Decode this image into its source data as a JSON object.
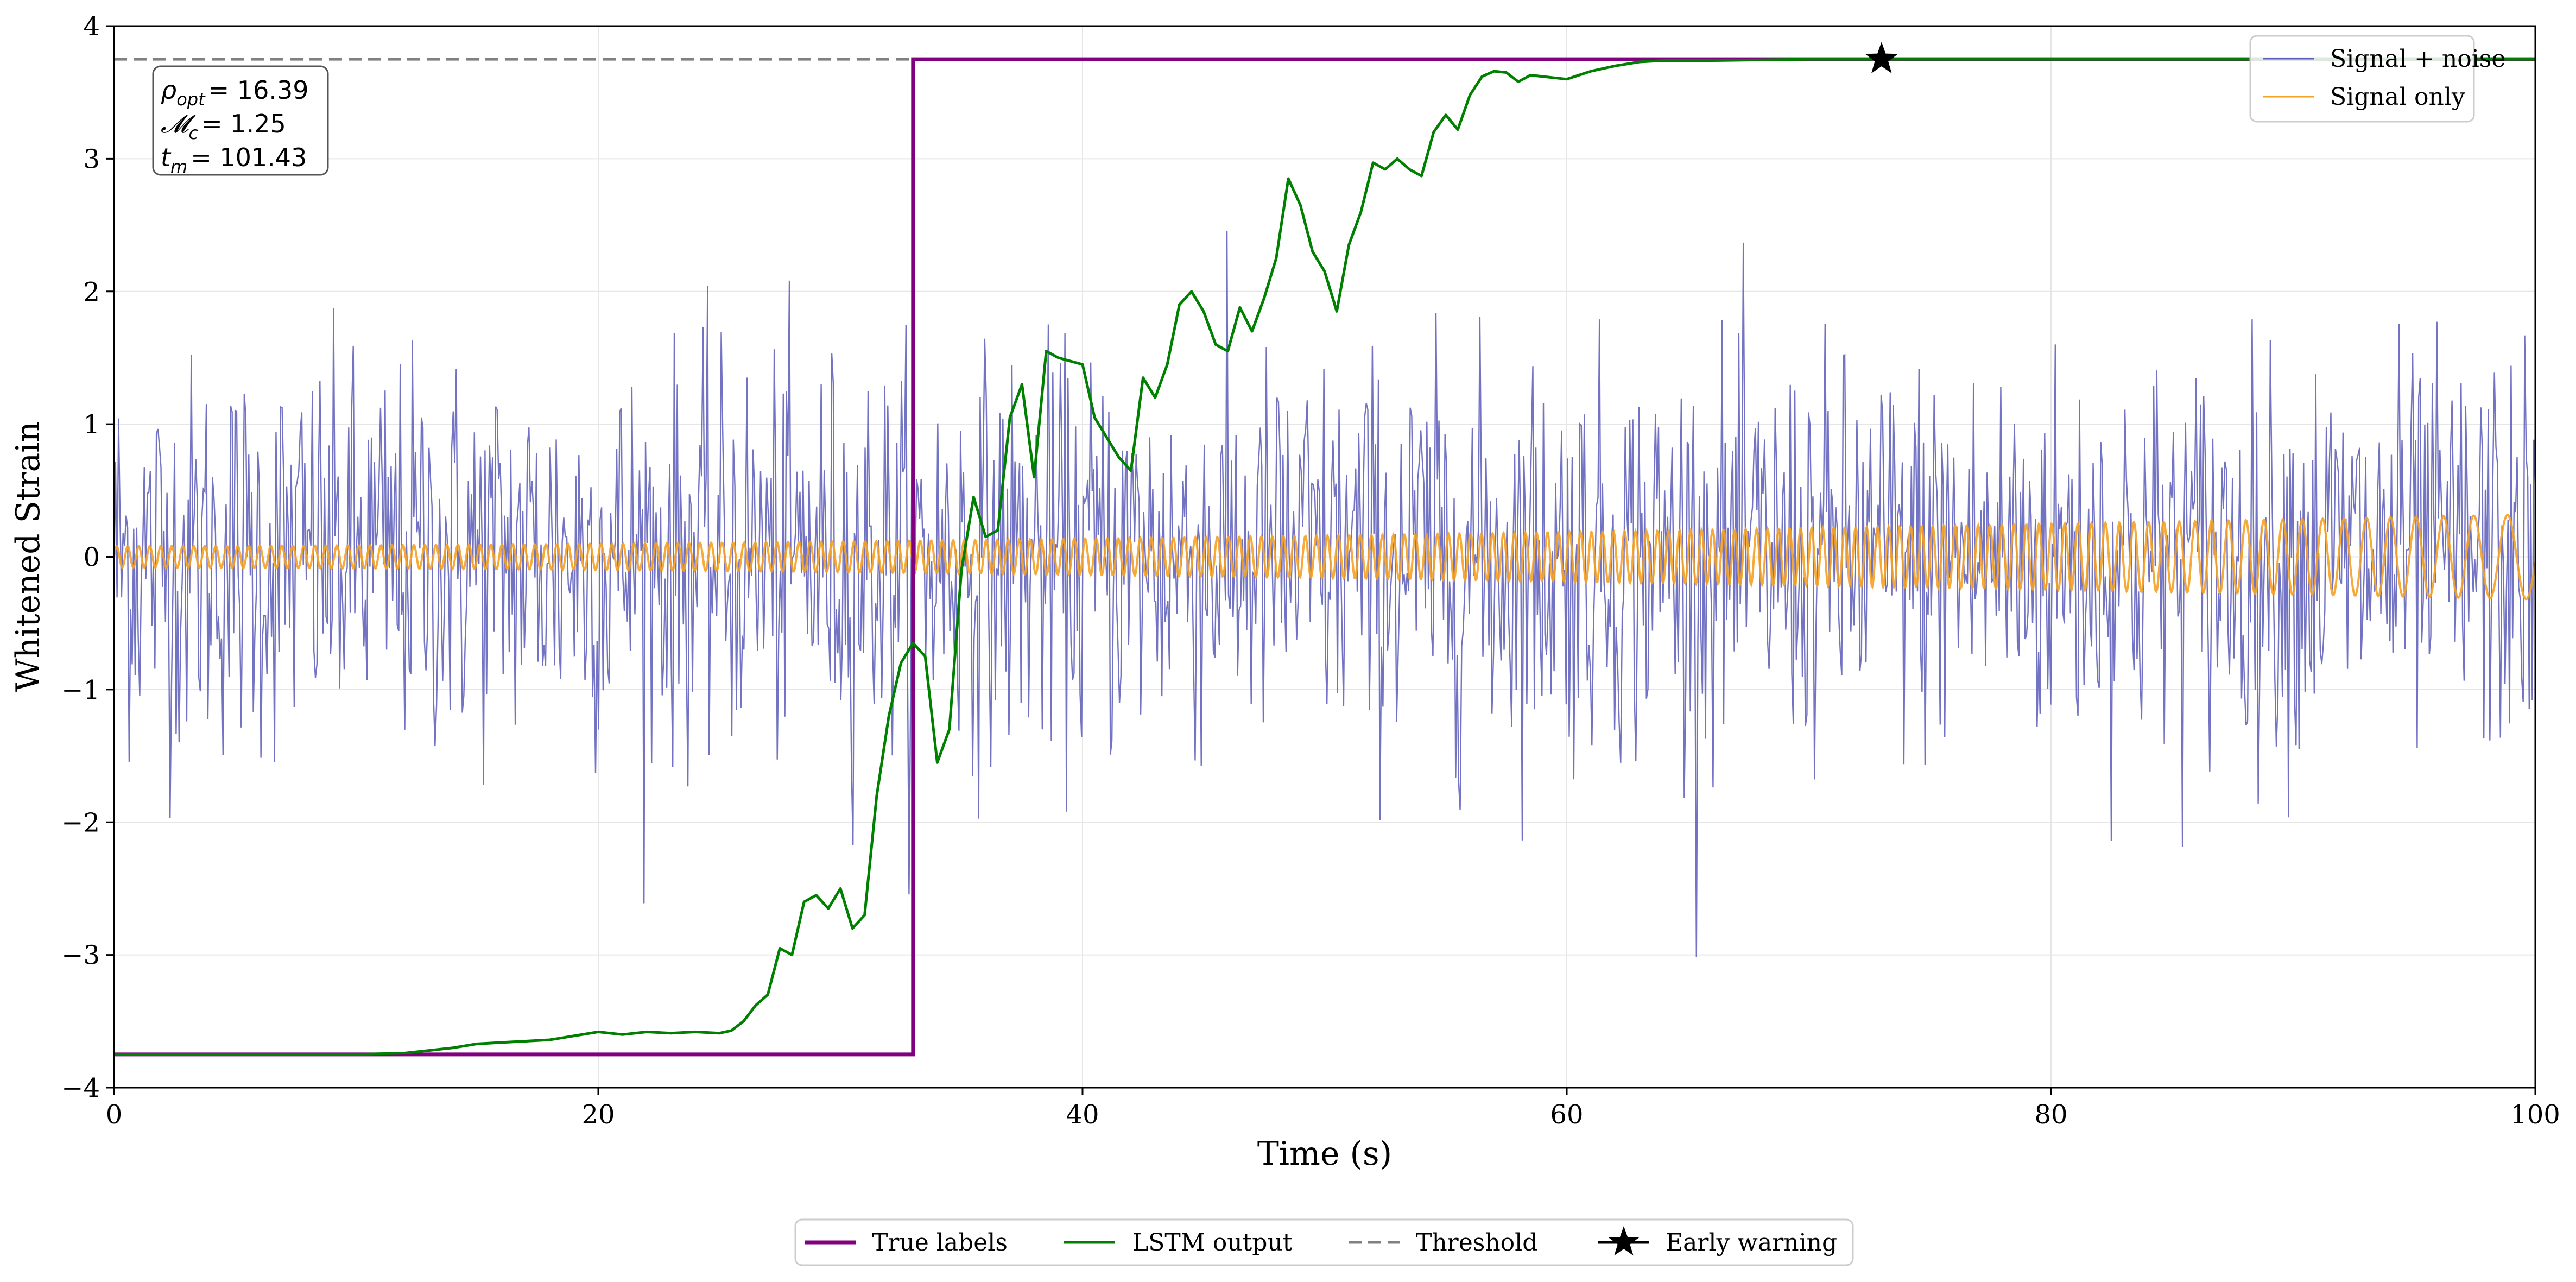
{
  "chart_data": {
    "type": "line",
    "title": "",
    "xlabel": "Time (s)",
    "ylabel": "Whitened Strain",
    "xlim": [
      0,
      100
    ],
    "ylim": [
      -4,
      4
    ],
    "grid": true,
    "x_ticks": [
      0,
      20,
      40,
      60,
      80,
      100
    ],
    "y_ticks": [
      -4,
      -3,
      -2,
      -1,
      0,
      1,
      2,
      3,
      4
    ],
    "x_tick_labels": [
      "0",
      "20",
      "40",
      "60",
      "80",
      "100"
    ],
    "y_tick_labels": [
      "−4",
      "−3",
      "−2",
      "−1",
      "0",
      "1",
      "2",
      "3",
      "4"
    ],
    "colors": {
      "signal_noise": "#5b5bb8",
      "signal_only": "#f4a125",
      "true_labels": "#800080",
      "lstm": "#008000",
      "threshold": "#808080",
      "marker": "#000000"
    },
    "series": [
      {
        "name": "Signal + noise",
        "kind": "noise",
        "description_stats": {
          "std": 0.75,
          "peak_range": [
            -3.1,
            2.55
          ],
          "samples": 1600
        }
      },
      {
        "name": "Signal only",
        "kind": "chirp",
        "envelope": {
          "amp_start": 0.08,
          "amp_end": 0.32
        }
      },
      {
        "name": "True labels",
        "kind": "step",
        "x": [
          0,
          33,
          33,
          100
        ],
        "y": [
          -3.75,
          -3.75,
          3.75,
          3.75
        ]
      },
      {
        "name": "LSTM output",
        "kind": "line",
        "x": [
          0,
          10,
          12,
          13,
          14,
          15,
          16,
          17,
          18,
          19,
          20,
          21,
          22,
          23,
          24,
          25,
          25.5,
          26,
          26.5,
          27,
          27.5,
          28,
          28.5,
          29,
          29.5,
          30,
          30.5,
          31,
          31.5,
          32,
          32.5,
          33,
          33.5,
          34,
          34.5,
          35,
          35.5,
          36,
          36.5,
          37,
          37.5,
          38,
          38.5,
          39,
          40,
          40.5,
          41,
          41.5,
          42,
          42.5,
          43,
          43.5,
          44,
          44.5,
          45,
          45.5,
          46,
          46.5,
          47,
          47.5,
          48,
          48.5,
          49,
          49.5,
          50,
          50.5,
          51,
          51.5,
          52,
          52.5,
          53,
          53.5,
          54,
          54.5,
          55,
          55.5,
          56,
          56.5,
          57,
          57.5,
          58,
          58.5,
          59,
          59.5,
          60,
          61,
          62,
          63,
          64,
          66,
          70,
          80,
          100
        ],
        "y": [
          -3.75,
          -3.75,
          -3.74,
          -3.72,
          -3.7,
          -3.67,
          -3.66,
          -3.65,
          -3.64,
          -3.61,
          -3.58,
          -3.6,
          -3.58,
          -3.59,
          -3.58,
          -3.59,
          -3.57,
          -3.5,
          -3.38,
          -3.3,
          -2.95,
          -3.0,
          -2.6,
          -2.55,
          -2.65,
          -2.5,
          -2.8,
          -2.7,
          -1.8,
          -1.2,
          -0.8,
          -0.65,
          -0.75,
          -1.55,
          -1.3,
          -0.1,
          0.45,
          0.15,
          0.2,
          1.05,
          1.3,
          0.6,
          1.55,
          1.5,
          1.45,
          1.05,
          0.9,
          0.75,
          0.65,
          1.35,
          1.2,
          1.45,
          1.9,
          2.0,
          1.85,
          1.6,
          1.55,
          1.88,
          1.7,
          1.95,
          2.25,
          2.85,
          2.65,
          2.3,
          2.15,
          1.85,
          2.35,
          2.6,
          2.97,
          2.92,
          3.0,
          2.92,
          2.87,
          3.2,
          3.33,
          3.22,
          3.48,
          3.62,
          3.66,
          3.65,
          3.58,
          3.63,
          3.62,
          3.61,
          3.6,
          3.66,
          3.7,
          3.73,
          3.74,
          3.74,
          3.75,
          3.75,
          3.75
        ]
      },
      {
        "name": "Threshold",
        "kind": "hline",
        "y": 3.75
      },
      {
        "name": "Early warning",
        "kind": "marker",
        "x": 73,
        "y": 3.75
      }
    ],
    "annotation": {
      "lines": [
        {
          "sym": "ρ",
          "sub": "opt",
          "val": "= 16.39"
        },
        {
          "sym": "𝓜",
          "sub": "c",
          "val": "= 1.25"
        },
        {
          "sym": "t",
          "sub": "m",
          "val": "= 101.43"
        }
      ]
    },
    "legend_upper": {
      "position": "top-right",
      "entries": [
        "Signal + noise",
        "Signal only"
      ]
    },
    "legend_lower": {
      "position": "bottom-center",
      "entries": [
        "True labels",
        "LSTM output",
        "Threshold",
        "Early warning"
      ]
    }
  }
}
